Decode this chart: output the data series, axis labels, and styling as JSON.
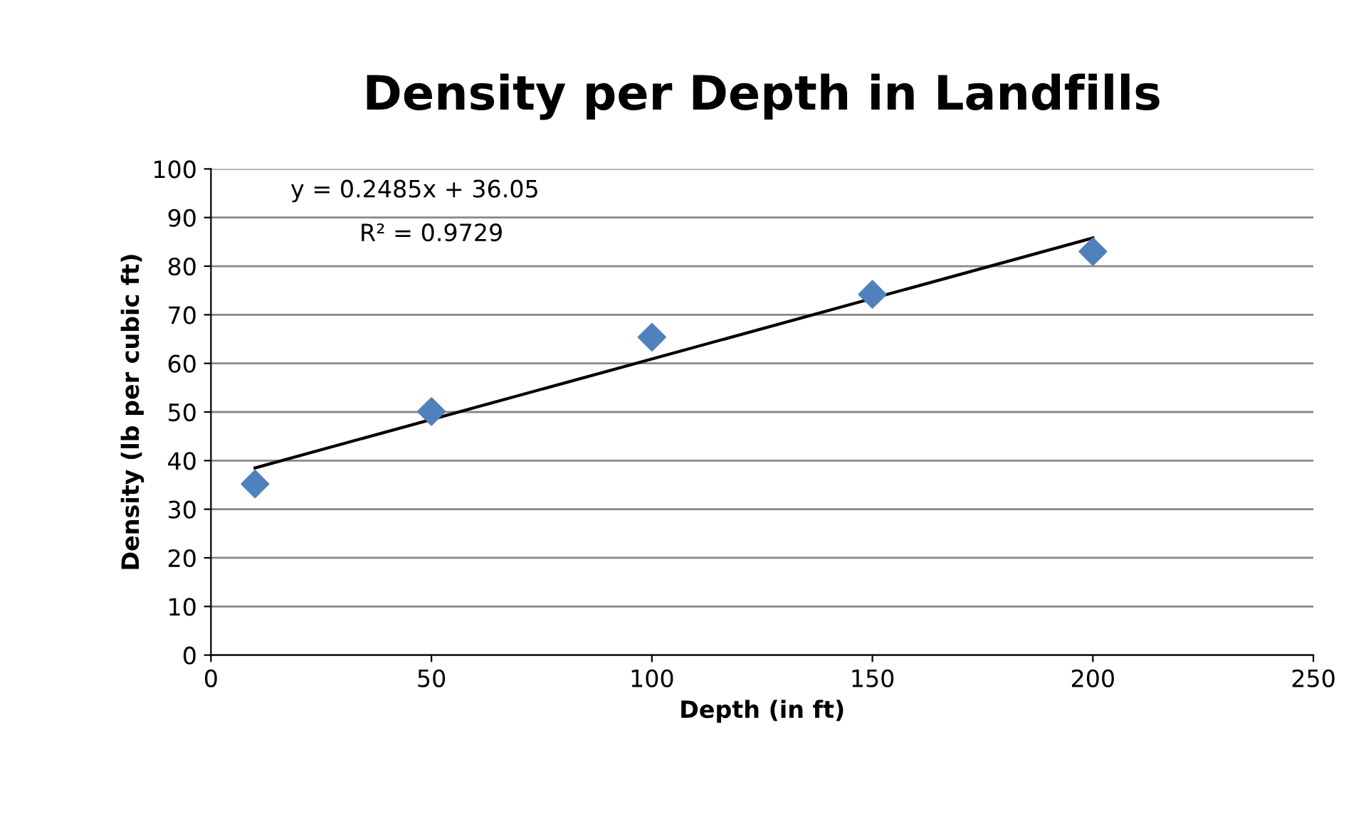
{
  "chart_data": {
    "type": "scatter",
    "title": "Density per Depth in Landfills",
    "xlabel": "Depth (in ft)",
    "ylabel": "Density (lb per cubic ft)",
    "annotations": [
      "y = 0.2485x + 36.05",
      "R² = 0.9729"
    ],
    "x": [
      10,
      50,
      100,
      150,
      200
    ],
    "series": [
      {
        "color": "#4f81bd",
        "marker": "diamond",
        "values": [
          35.2,
          50.1,
          65.4,
          74.2,
          83.0
        ]
      },
      {
        "type": "line",
        "color": "#000000",
        "marker": "none",
        "x": [
          10,
          200
        ],
        "values": [
          38.5,
          85.8
        ]
      }
    ],
    "xlim": [
      0,
      250
    ],
    "xticks": [
      0,
      50,
      100,
      150,
      200,
      250
    ],
    "ylim": [
      0,
      100
    ],
    "yticks": [
      0,
      10,
      20,
      30,
      40,
      50,
      60,
      70,
      80,
      90,
      100
    ],
    "grid": "y",
    "legend": false
  }
}
